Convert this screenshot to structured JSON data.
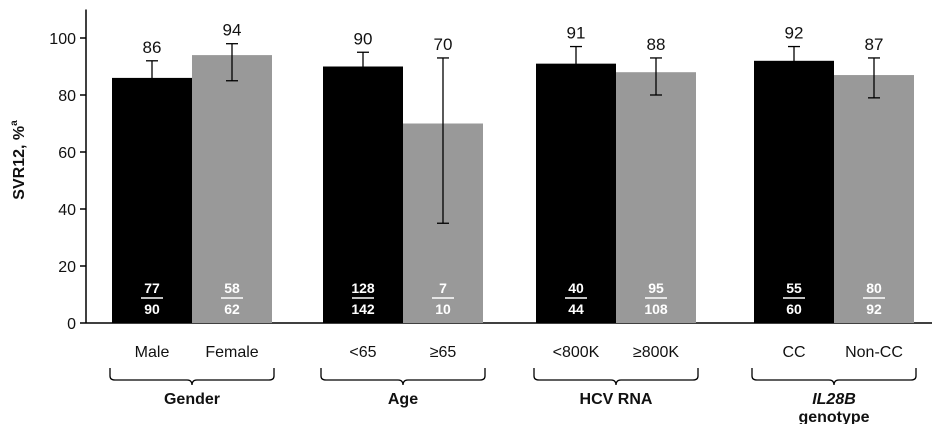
{
  "chart_data": {
    "type": "bar",
    "ylabel": "SVR12, %",
    "ylabel_superscript": "a",
    "ylim": [
      0,
      110
    ],
    "yticks": [
      0,
      20,
      40,
      60,
      80,
      100
    ],
    "grid": false,
    "colors": {
      "primary": "#000000",
      "secondary": "#999999"
    },
    "groups": [
      {
        "label": "Gender",
        "label_italic_part": "",
        "label_rest": "",
        "bars": [
          {
            "category": "Male",
            "value": 86,
            "value_label": "86",
            "err_low": 80,
            "err_high": 92,
            "numerator": "77",
            "denominator": "90",
            "color": "primary"
          },
          {
            "category": "Female",
            "value": 94,
            "value_label": "94",
            "err_low": 85,
            "err_high": 98,
            "numerator": "58",
            "denominator": "62",
            "color": "secondary"
          }
        ]
      },
      {
        "label": "Age",
        "label_italic_part": "",
        "label_rest": "",
        "bars": [
          {
            "category": "<65",
            "value": 90,
            "value_label": "90",
            "err_low": 85,
            "err_high": 95,
            "numerator": "128",
            "denominator": "142",
            "color": "primary"
          },
          {
            "category": "≥65",
            "value": 70,
            "value_label": "70",
            "err_low": 35,
            "err_high": 93,
            "numerator": "7",
            "denominator": "10",
            "color": "secondary"
          }
        ]
      },
      {
        "label": "HCV RNA",
        "label_italic_part": "",
        "label_rest": "",
        "bars": [
          {
            "category": "<800K",
            "value": 91,
            "value_label": "91",
            "err_low": 85,
            "err_high": 97,
            "numerator": "40",
            "denominator": "44",
            "color": "primary"
          },
          {
            "category": "≥800K",
            "value": 88,
            "value_label": "88",
            "err_low": 80,
            "err_high": 93,
            "numerator": "95",
            "denominator": "108",
            "color": "secondary"
          }
        ]
      },
      {
        "label": "",
        "label_italic_part": "IL28B",
        "label_rest": "genotype",
        "bars": [
          {
            "category": "CC",
            "value": 92,
            "value_label": "92",
            "err_low": 86,
            "err_high": 97,
            "numerator": "55",
            "denominator": "60",
            "color": "primary"
          },
          {
            "category": "Non-CC",
            "value": 87,
            "value_label": "87",
            "err_low": 79,
            "err_high": 93,
            "numerator": "80",
            "denominator": "92",
            "color": "secondary"
          }
        ]
      }
    ]
  }
}
